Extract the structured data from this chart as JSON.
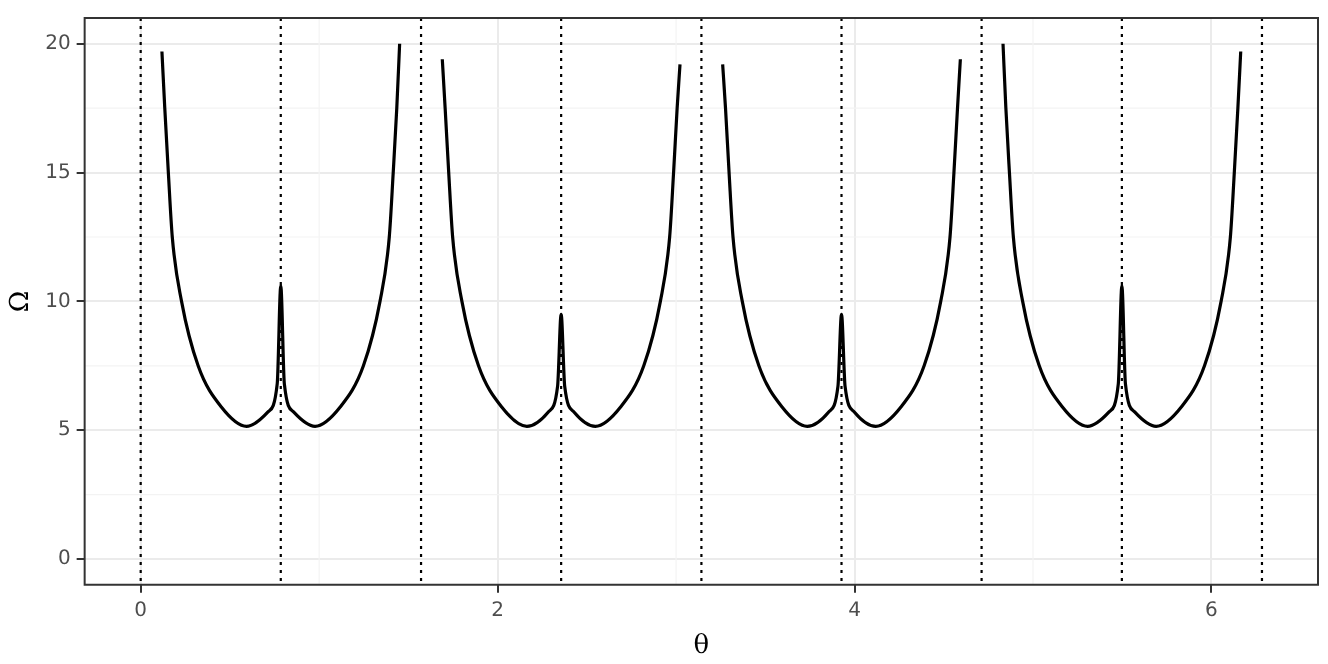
{
  "chart_data": {
    "type": "line",
    "xlabel": "θ",
    "ylabel": "Ω",
    "xlim": [
      -0.314,
      6.597
    ],
    "ylim": [
      -1,
      21
    ],
    "xticks": [
      0,
      2,
      4,
      6
    ],
    "yticks": [
      0,
      5,
      10,
      15,
      20
    ],
    "grid": true,
    "legend": false,
    "series": [
      {
        "color": "#000000",
        "x": [
          0.119,
          0.135,
          0.155,
          0.177,
          0.229,
          0.322,
          0.452,
          0.593,
          0.712,
          0.765,
          0.785,
          0.805,
          0.858,
          0.977,
          1.118,
          1.248,
          1.341,
          1.393,
          1.415,
          1.435,
          1.451
        ],
        "values": [
          19.7,
          17.5,
          15,
          12.5,
          10,
          7.5,
          5.9,
          5.15,
          5.7,
          6.8,
          10.6,
          6.8,
          5.7,
          5.15,
          5.9,
          7.5,
          10,
          12.5,
          15,
          17.5,
          20
        ]
      },
      {
        "color": "#000000",
        "x": [
          1.69,
          1.706,
          1.726,
          1.748,
          1.8,
          1.893,
          2.023,
          2.164,
          2.283,
          2.336,
          2.356,
          2.376,
          2.429,
          2.548,
          2.689,
          2.819,
          2.912,
          2.964,
          2.986,
          3.006,
          3.022
        ],
        "values": [
          19.4,
          17.5,
          15,
          12.5,
          10,
          7.5,
          5.9,
          5.15,
          5.7,
          6.7,
          9.5,
          6.7,
          5.7,
          5.15,
          5.9,
          7.5,
          10,
          12.5,
          15,
          17.5,
          19.2
        ]
      },
      {
        "color": "#000000",
        "x": [
          3.261,
          3.277,
          3.297,
          3.319,
          3.371,
          3.464,
          3.594,
          3.735,
          3.854,
          3.907,
          3.927,
          3.947,
          4.0,
          4.119,
          4.26,
          4.39,
          4.483,
          4.535,
          4.557,
          4.577,
          4.593
        ],
        "values": [
          19.2,
          17.5,
          15,
          12.5,
          10,
          7.5,
          5.9,
          5.15,
          5.7,
          6.7,
          9.5,
          6.7,
          5.7,
          5.15,
          5.9,
          7.5,
          10,
          12.5,
          15,
          17.5,
          19.4
        ]
      },
      {
        "color": "#000000",
        "x": [
          4.832,
          4.848,
          4.868,
          4.89,
          4.942,
          5.035,
          5.165,
          5.306,
          5.425,
          5.478,
          5.498,
          5.518,
          5.571,
          5.69,
          5.831,
          5.961,
          6.054,
          6.106,
          6.128,
          6.148,
          6.164
        ],
        "values": [
          20,
          17.5,
          15,
          12.5,
          10,
          7.5,
          5.9,
          5.15,
          5.7,
          6.8,
          10.6,
          6.8,
          5.7,
          5.15,
          5.9,
          7.5,
          10,
          12.5,
          15,
          17.5,
          19.7
        ]
      }
    ],
    "ref_lines": [
      {
        "axis": "x",
        "value": 0,
        "color": "#000000",
        "line_style": "dotted"
      },
      {
        "axis": "x",
        "value": 0.785,
        "color": "#000000",
        "line_style": "dotted"
      },
      {
        "axis": "x",
        "value": 1.571,
        "color": "#000000",
        "line_style": "dotted"
      },
      {
        "axis": "x",
        "value": 2.356,
        "color": "#000000",
        "line_style": "dotted"
      },
      {
        "axis": "x",
        "value": 3.142,
        "color": "#000000",
        "line_style": "dotted"
      },
      {
        "axis": "x",
        "value": 3.927,
        "color": "#000000",
        "line_style": "dotted"
      },
      {
        "axis": "x",
        "value": 4.712,
        "color": "#000000",
        "line_style": "dotted"
      },
      {
        "axis": "x",
        "value": 5.498,
        "color": "#000000",
        "line_style": "dotted"
      },
      {
        "axis": "x",
        "value": 6.283,
        "color": "#000000",
        "line_style": "dotted"
      }
    ]
  }
}
